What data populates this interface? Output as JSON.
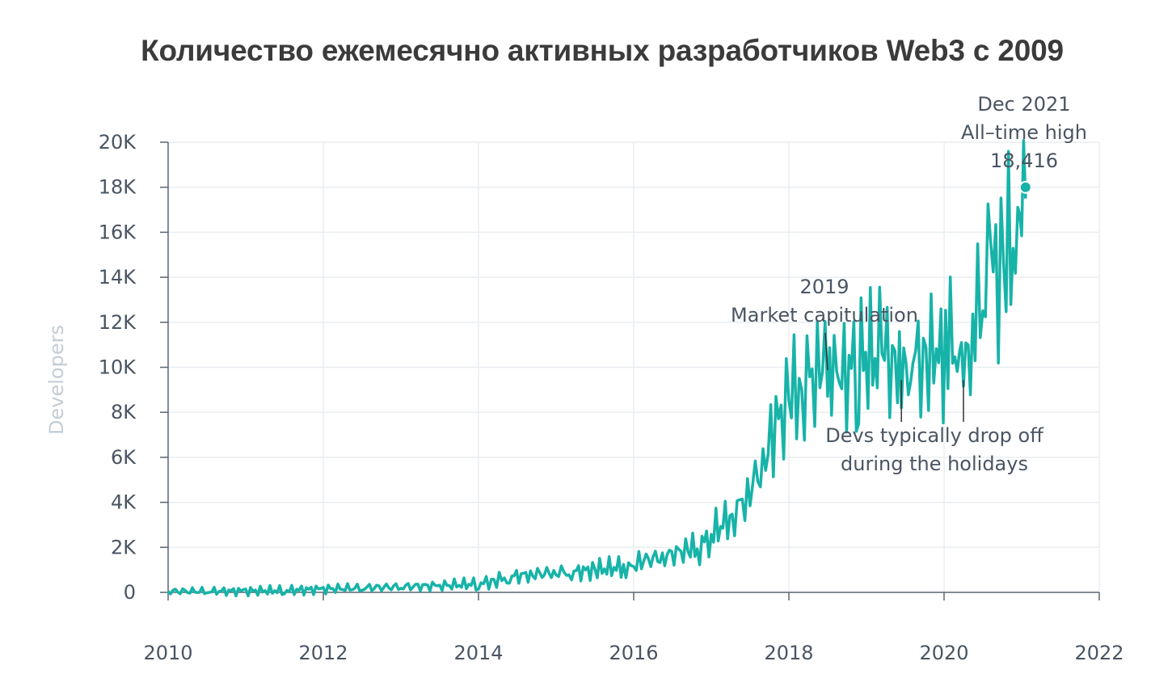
{
  "title": "Количество ежемесячно активных разработчиков Web3 с 2009",
  "chart_data": {
    "type": "line",
    "xlabel": "",
    "ylabel": "Developers",
    "xlim": [
      2010,
      2022
    ],
    "ylim": [
      0,
      20000
    ],
    "x_ticks": [
      "2010",
      "2012",
      "2014",
      "2016",
      "2018",
      "2020",
      "2022"
    ],
    "y_ticks": [
      "0",
      "2K",
      "4K",
      "6K",
      "8K",
      "10K",
      "12K",
      "14K",
      "16K",
      "18K",
      "20K"
    ],
    "grid": true,
    "line_color": "#17b3a8",
    "series": [
      {
        "x": [
          2010.0,
          2010.5,
          2011.0,
          2011.5,
          2012.0,
          2012.5,
          2013.0,
          2013.5,
          2014.0,
          2014.2,
          2014.4,
          2014.7,
          2015.0,
          2015.2,
          2015.5,
          2015.9,
          2016.0,
          2016.1,
          2016.4,
          2016.7,
          2016.85,
          2017.0,
          2017.3,
          2017.5,
          2017.7,
          2017.8,
          2018.0,
          2018.2,
          2018.4,
          2018.5,
          2018.55,
          2018.65,
          2018.9,
          2019.2,
          2019.4,
          2019.45,
          2019.6,
          2019.8,
          2019.9,
          2020.05,
          2020.2,
          2020.25,
          2020.4,
          2020.6,
          2020.8,
          2020.95,
          2021.0,
          2021.05
        ],
        "y": [
          50,
          50,
          60,
          80,
          150,
          200,
          250,
          300,
          380,
          500,
          700,
          800,
          900,
          900,
          1000,
          1150,
          1200,
          1400,
          1600,
          1900,
          2000,
          2600,
          3500,
          4500,
          6000,
          7200,
          8500,
          9500,
          9700,
          10200,
          10000,
          9300,
          10400,
          10500,
          10300,
          9300,
          10300,
          10500,
          10100,
          11200,
          10800,
          9400,
          12000,
          14000,
          15000,
          15600,
          16500,
          17500
        ]
      }
    ],
    "highlight_point": {
      "x": 2021.05,
      "y": 18000
    },
    "annotations": [
      {
        "lines": [
          "Dec 2021",
          "All–time high",
          "18,416"
        ]
      },
      {
        "lines": [
          "2019",
          "Market capitulation"
        ],
        "target_x": 2018.5,
        "target_y": 10000
      },
      {
        "lines": [
          "Devs typically drop off",
          "during the holidays"
        ],
        "targets": [
          {
            "x": 2019.45,
            "y": 9300
          },
          {
            "x": 2020.25,
            "y": 9400
          }
        ]
      }
    ]
  }
}
